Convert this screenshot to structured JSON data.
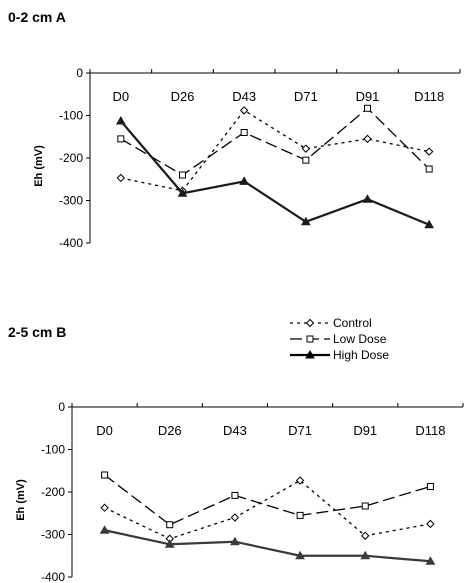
{
  "chart_data": [
    {
      "type": "line",
      "title": "0-2 cm A",
      "xlabel": "",
      "ylabel": "Eh (mV)",
      "ylim": [
        -400,
        0
      ],
      "yticks": [
        0,
        -100,
        -200,
        -300,
        -400
      ],
      "categories": [
        "D0",
        "D26",
        "D43",
        "D71",
        "D91",
        "D118"
      ],
      "series": [
        {
          "name": "Control",
          "values": [
            -247,
            -277,
            -88,
            -178,
            -155,
            -185
          ]
        },
        {
          "name": "Low Dose",
          "values": [
            -155,
            -240,
            -140,
            -205,
            -83,
            -226
          ]
        },
        {
          "name": "High Dose",
          "values": [
            -113,
            -283,
            -255,
            -350,
            -297,
            -357
          ]
        }
      ]
    },
    {
      "type": "line",
      "title": "2-5 cm B",
      "xlabel": "",
      "ylabel": "Eh (mV)",
      "ylim": [
        -400,
        0
      ],
      "yticks": [
        0,
        -100,
        -200,
        -300,
        -400
      ],
      "categories": [
        "D0",
        "D26",
        "D43",
        "D71",
        "D91",
        "D118"
      ],
      "series": [
        {
          "name": "Control",
          "values": [
            -237,
            -310,
            -260,
            -173,
            -303,
            -275
          ]
        },
        {
          "name": "Low Dose",
          "values": [
            -160,
            -277,
            -208,
            -255,
            -233,
            -187
          ]
        },
        {
          "name": "High Dose",
          "values": [
            -290,
            -323,
            -317,
            -350,
            -350,
            -363
          ]
        }
      ]
    }
  ],
  "legend": {
    "entries": [
      "Control",
      "Low Dose",
      "High Dose"
    ]
  },
  "styles": {
    "line_color": "#000000",
    "high_dose_color": "#1a1a1a",
    "high_dose_color_b": "#3a3a3a"
  }
}
